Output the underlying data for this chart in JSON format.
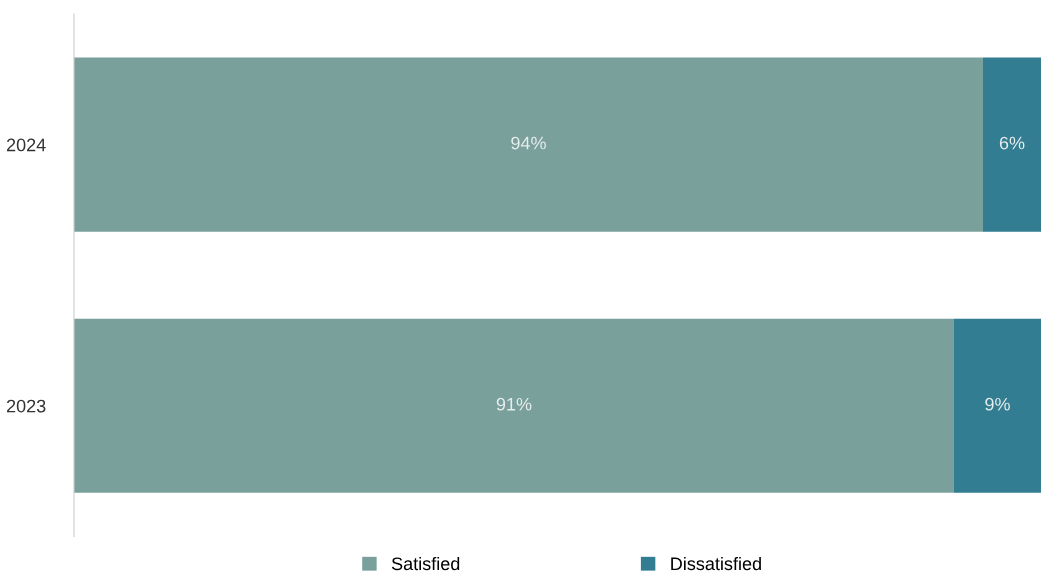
{
  "chart_data": {
    "type": "bar",
    "orientation": "horizontal",
    "stacked": true,
    "categories": [
      "2024",
      "2023"
    ],
    "series": [
      {
        "name": "Satisfied",
        "color": "#7aa09b",
        "values": [
          94,
          91
        ],
        "value_labels": [
          "94%",
          "91%"
        ]
      },
      {
        "name": "Dissatisfied",
        "color": "#327d91",
        "values": [
          6,
          9
        ],
        "value_labels": [
          "6%",
          "9%"
        ]
      }
    ],
    "xlim": [
      0,
      100
    ],
    "tick_labels": "y",
    "grid": false,
    "legend": "bottom"
  }
}
